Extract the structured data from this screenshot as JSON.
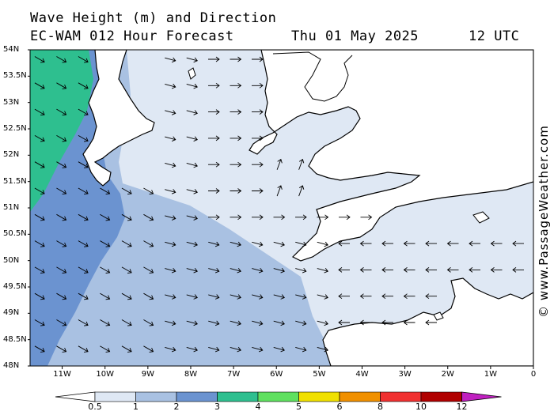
{
  "header": {
    "title": "Wave Height (m) and Direction",
    "model": "EC-WAM 012 Hour Forecast",
    "date": "Thu 01 May 2025",
    "time": "12 UTC"
  },
  "credit": "© www.PassageWeather.com",
  "map": {
    "lat_labels": [
      "54N",
      "53.5N",
      "53N",
      "52.5N",
      "52N",
      "51.5N",
      "51N",
      "50.5N",
      "50N",
      "49.5N",
      "49N",
      "48.5N",
      "48N"
    ],
    "lon_labels": [
      "11W",
      "10W",
      "9W",
      "8W",
      "7W",
      "6W",
      "5W",
      "4W",
      "3W",
      "2W",
      "1W",
      "0"
    ],
    "lat_range": [
      48,
      54
    ],
    "lon_range": [
      -11.75,
      0
    ],
    "land_color": "#ffffff",
    "coast_color": "#000000"
  },
  "legend": {
    "labels": [
      "0.5",
      "1",
      "2",
      "3",
      "4",
      "5",
      "6",
      "8",
      "10",
      "12"
    ],
    "colors": [
      "#dfe8f4",
      "#a9c1e2",
      "#6b93d0",
      "#2ebf8f",
      "#5fe05f",
      "#f0e000",
      "#f09000",
      "#f03030",
      "#b00000",
      "#c020c0"
    ],
    "unit": "m"
  }
}
